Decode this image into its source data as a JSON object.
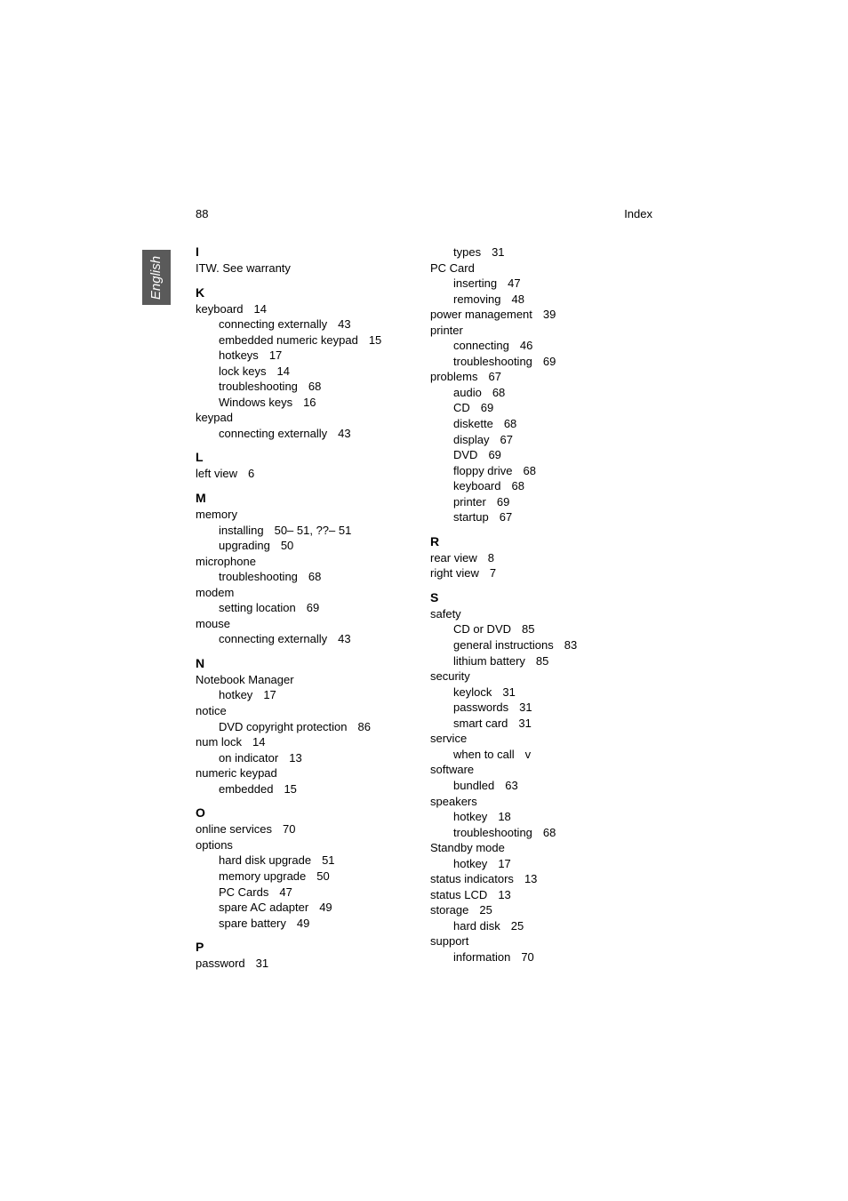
{
  "header": {
    "pageNumber": "88",
    "title": "Index"
  },
  "sideTab": "English",
  "leftColumn": [
    {
      "type": "letter",
      "text": "I"
    },
    {
      "type": "entry",
      "text": "ITW. See warranty"
    },
    {
      "type": "letter",
      "text": "K"
    },
    {
      "type": "entry",
      "text": "keyboard",
      "page": "14"
    },
    {
      "type": "sub",
      "text": "connecting externally",
      "page": "43"
    },
    {
      "type": "sub",
      "text": "embedded numeric keypad",
      "page": "15"
    },
    {
      "type": "sub",
      "text": "hotkeys",
      "page": "17"
    },
    {
      "type": "sub",
      "text": "lock keys",
      "page": "14"
    },
    {
      "type": "sub",
      "text": "troubleshooting",
      "page": "68"
    },
    {
      "type": "sub",
      "text": "Windows keys",
      "page": "16"
    },
    {
      "type": "entry",
      "text": "keypad"
    },
    {
      "type": "sub",
      "text": "connecting externally",
      "page": "43"
    },
    {
      "type": "letter",
      "text": "L"
    },
    {
      "type": "entry",
      "text": "left view",
      "page": "6"
    },
    {
      "type": "letter",
      "text": "M"
    },
    {
      "type": "entry",
      "text": "memory"
    },
    {
      "type": "sub",
      "text": "installing",
      "page": "50– 51, ??– 51"
    },
    {
      "type": "sub",
      "text": "upgrading",
      "page": "50"
    },
    {
      "type": "entry",
      "text": "microphone"
    },
    {
      "type": "sub",
      "text": "troubleshooting",
      "page": "68"
    },
    {
      "type": "entry",
      "text": "modem"
    },
    {
      "type": "sub",
      "text": "setting location",
      "page": "69"
    },
    {
      "type": "entry",
      "text": "mouse"
    },
    {
      "type": "sub",
      "text": "connecting externally",
      "page": "43"
    },
    {
      "type": "letter",
      "text": "N"
    },
    {
      "type": "entry",
      "text": "Notebook Manager"
    },
    {
      "type": "sub",
      "text": "hotkey",
      "page": "17"
    },
    {
      "type": "entry",
      "text": "notice"
    },
    {
      "type": "sub",
      "text": "DVD copyright protection",
      "page": "86"
    },
    {
      "type": "entry",
      "text": "num lock",
      "page": "14"
    },
    {
      "type": "sub",
      "text": "on indicator",
      "page": "13"
    },
    {
      "type": "entry",
      "text": "numeric keypad"
    },
    {
      "type": "sub",
      "text": "embedded",
      "page": "15"
    },
    {
      "type": "letter",
      "text": "O"
    },
    {
      "type": "entry",
      "text": "online services",
      "page": "70"
    },
    {
      "type": "entry",
      "text": "options"
    },
    {
      "type": "sub",
      "text": "hard disk upgrade",
      "page": "51"
    },
    {
      "type": "sub",
      "text": "memory upgrade",
      "page": "50"
    },
    {
      "type": "sub",
      "text": "PC Cards",
      "page": "47"
    },
    {
      "type": "sub",
      "text": "spare AC adapter",
      "page": "49"
    },
    {
      "type": "sub",
      "text": "spare battery",
      "page": "49"
    },
    {
      "type": "letter",
      "text": "P"
    },
    {
      "type": "entry",
      "text": "password",
      "page": "31"
    }
  ],
  "rightColumn": [
    {
      "type": "sub",
      "text": "types",
      "page": "31"
    },
    {
      "type": "entry",
      "text": "PC Card"
    },
    {
      "type": "sub",
      "text": "inserting",
      "page": "47"
    },
    {
      "type": "sub",
      "text": "removing",
      "page": "48"
    },
    {
      "type": "entry",
      "text": "power management",
      "page": "39"
    },
    {
      "type": "entry",
      "text": "printer"
    },
    {
      "type": "sub",
      "text": "connecting",
      "page": "46"
    },
    {
      "type": "sub",
      "text": "troubleshooting",
      "page": "69"
    },
    {
      "type": "entry",
      "text": "problems",
      "page": "67"
    },
    {
      "type": "sub",
      "text": "audio",
      "page": "68"
    },
    {
      "type": "sub",
      "text": "CD",
      "page": "69"
    },
    {
      "type": "sub",
      "text": "diskette",
      "page": "68"
    },
    {
      "type": "sub",
      "text": "display",
      "page": "67"
    },
    {
      "type": "sub",
      "text": "DVD",
      "page": "69"
    },
    {
      "type": "sub",
      "text": "floppy drive",
      "page": "68"
    },
    {
      "type": "sub",
      "text": "keyboard",
      "page": "68"
    },
    {
      "type": "sub",
      "text": "printer",
      "page": "69"
    },
    {
      "type": "sub",
      "text": "startup",
      "page": "67"
    },
    {
      "type": "letter",
      "text": "R"
    },
    {
      "type": "entry",
      "text": "rear view",
      "page": "8"
    },
    {
      "type": "entry",
      "text": "right view",
      "page": "7"
    },
    {
      "type": "letter",
      "text": "S"
    },
    {
      "type": "entry",
      "text": "safety"
    },
    {
      "type": "sub",
      "text": "CD or DVD",
      "page": "85"
    },
    {
      "type": "sub",
      "text": "general instructions",
      "page": "83"
    },
    {
      "type": "sub",
      "text": "lithium battery",
      "page": "85"
    },
    {
      "type": "entry",
      "text": "security"
    },
    {
      "type": "sub",
      "text": "keylock",
      "page": "31"
    },
    {
      "type": "sub",
      "text": "passwords",
      "page": "31"
    },
    {
      "type": "sub",
      "text": "smart card",
      "page": "31"
    },
    {
      "type": "entry",
      "text": "service"
    },
    {
      "type": "sub",
      "text": "when to call",
      "page": "v"
    },
    {
      "type": "entry",
      "text": "software"
    },
    {
      "type": "sub",
      "text": "bundled",
      "page": "63"
    },
    {
      "type": "entry",
      "text": "speakers"
    },
    {
      "type": "sub",
      "text": "hotkey",
      "page": "18"
    },
    {
      "type": "sub",
      "text": "troubleshooting",
      "page": "68"
    },
    {
      "type": "entry",
      "text": "Standby mode"
    },
    {
      "type": "sub",
      "text": "hotkey",
      "page": "17"
    },
    {
      "type": "entry",
      "text": "status indicators",
      "page": "13"
    },
    {
      "type": "entry",
      "text": "status LCD",
      "page": "13"
    },
    {
      "type": "entry",
      "text": "storage",
      "page": "25"
    },
    {
      "type": "sub",
      "text": "hard disk",
      "page": "25"
    },
    {
      "type": "entry",
      "text": "support"
    },
    {
      "type": "sub",
      "text": "information",
      "page": "70"
    }
  ]
}
